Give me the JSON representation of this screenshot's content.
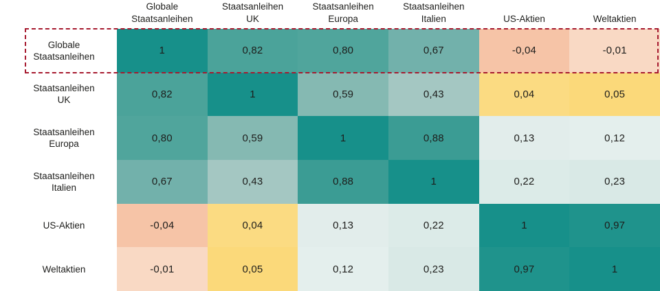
{
  "chart_data": {
    "type": "heatmap",
    "title": "",
    "legend_position": "none",
    "grid": false,
    "categories": [
      "Globale Staatsanleihen",
      "Staatsanleihen UK",
      "Staatsanleihen Europa",
      "Staatsanleihen Italien",
      "US-Aktien",
      "Weltaktien"
    ],
    "column_header_lines": [
      "Globale\nStaatsanleihen",
      "Staatsanleihen\nUK",
      "Staatsanleihen\nEuropa",
      "Staatsanleihen\nItalien",
      "US-Aktien",
      "Weltaktien"
    ],
    "row_label_lines": [
      "Globale\nStaatsanleihen",
      "Staatsanleihen\nUK",
      "Staatsanleihen\nEuropa",
      "Staatsanleihen\nItalien",
      "US-Aktien",
      "Weltaktien"
    ],
    "matrix": [
      [
        1.0,
        0.82,
        0.8,
        0.67,
        -0.04,
        -0.01
      ],
      [
        0.82,
        1.0,
        0.59,
        0.43,
        0.04,
        0.05
      ],
      [
        0.8,
        0.59,
        1.0,
        0.88,
        0.13,
        0.12
      ],
      [
        0.67,
        0.43,
        0.88,
        1.0,
        0.22,
        0.23
      ],
      [
        -0.04,
        0.04,
        0.13,
        0.22,
        1.0,
        0.97
      ],
      [
        -0.01,
        0.05,
        0.12,
        0.23,
        0.97,
        1.0
      ]
    ],
    "display_values": [
      [
        "1",
        "0,82",
        "0,80",
        "0,67",
        "-0,04",
        "-0,01"
      ],
      [
        "0,82",
        "1",
        "0,59",
        "0,43",
        "0,04",
        "0,05"
      ],
      [
        "0,80",
        "0,59",
        "1",
        "0,88",
        "0,13",
        "0,12"
      ],
      [
        "0,67",
        "0,43",
        "0,88",
        "1",
        "0,22",
        "0,23"
      ],
      [
        "-0,04",
        "0,04",
        "0,13",
        "0,22",
        "1",
        "0,97"
      ],
      [
        "-0,01",
        "0,05",
        "0,12",
        "0,23",
        "0,97",
        "1"
      ]
    ],
    "value_colors": {
      "1": "#17908a",
      "0,97": "#1f938c",
      "0,88": "#3b9c94",
      "0,82": "#4ba39a",
      "0,80": "#50a59c",
      "0,67": "#72b1ab",
      "0,59": "#85b9b2",
      "0,43": "#a4c7c2",
      "0,23": "#d9e9e6",
      "0,22": "#dcebe8",
      "0,13": "#e2edeb",
      "0,12": "#e4efed",
      "0,05": "#fbd97a",
      "0,04": "#fbdb82",
      "-0,01": "#f9d9c4",
      "-0,04": "#f6c4a7"
    },
    "highlight": {
      "shape": "dashed-outline",
      "target_row": "Globale Staatsanleihen",
      "row_index": 0,
      "color": "#a6192e"
    }
  },
  "colors": {
    "background": "#ffffff",
    "text": "#1d1d1b",
    "positive_strong": "#17908a",
    "near_zero_positive": "#fbdb82",
    "negative": "#f6c4a7",
    "highlight_border": "#a6192e"
  }
}
